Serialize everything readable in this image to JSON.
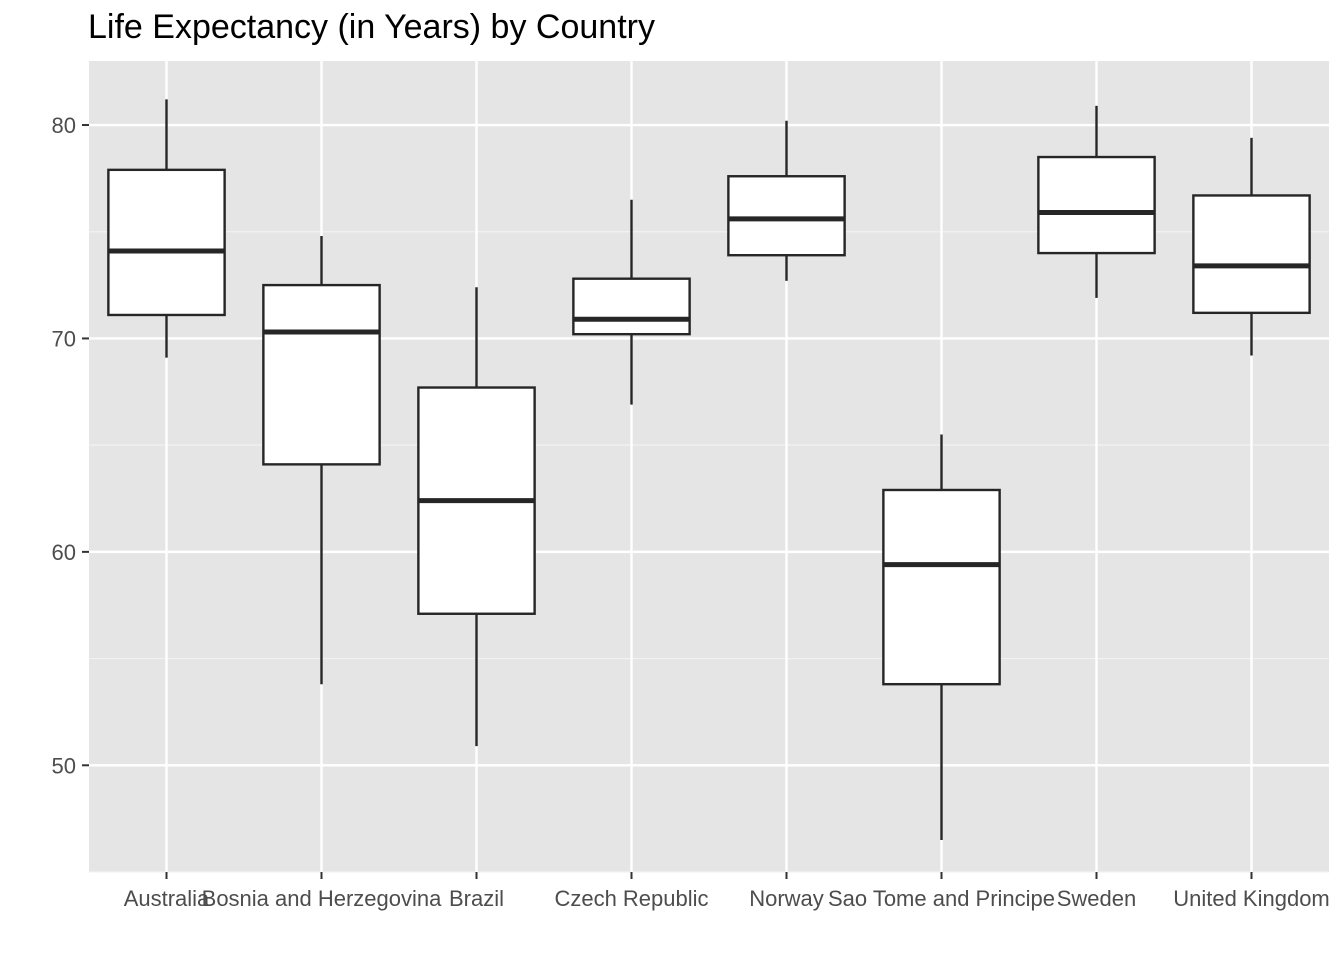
{
  "chart_data": {
    "type": "boxplot",
    "title": "Life Expectancy (in Years) by Country",
    "xlabel": "",
    "ylabel": "",
    "ylim": [
      45,
      83
    ],
    "y_ticks": [
      "50",
      "60",
      "70",
      "80"
    ],
    "grid": true,
    "legend": "none",
    "categories": [
      "Australia",
      "Bosnia and Herzegovina",
      "Brazil",
      "Czech Republic",
      "Norway",
      "Sao Tome and Principe",
      "Sweden",
      "United Kingdom"
    ],
    "boxes": [
      {
        "category": "Australia",
        "min": 69.1,
        "q1": 71.1,
        "median": 74.1,
        "q3": 77.9,
        "max": 81.2
      },
      {
        "category": "Bosnia and Herzegovina",
        "min": 53.8,
        "q1": 64.1,
        "median": 70.3,
        "q3": 72.5,
        "max": 74.8
      },
      {
        "category": "Brazil",
        "min": 50.9,
        "q1": 57.1,
        "median": 62.4,
        "q3": 67.7,
        "max": 72.4
      },
      {
        "category": "Czech Republic",
        "min": 66.9,
        "q1": 70.2,
        "median": 70.9,
        "q3": 72.8,
        "max": 76.5
      },
      {
        "category": "Norway",
        "min": 72.7,
        "q1": 73.9,
        "median": 75.6,
        "q3": 77.6,
        "max": 80.2
      },
      {
        "category": "Sao Tome and Principe",
        "min": 46.5,
        "q1": 53.8,
        "median": 59.4,
        "q3": 62.9,
        "max": 65.5
      },
      {
        "category": "Sweden",
        "min": 71.9,
        "q1": 74.0,
        "median": 75.9,
        "q3": 78.5,
        "max": 80.9
      },
      {
        "category": "United Kingdom",
        "min": 69.2,
        "q1": 71.2,
        "median": 73.4,
        "q3": 76.7,
        "max": 79.4
      }
    ],
    "colors": {
      "panel_background": "#e5e5e5",
      "grid_major": "#ffffff",
      "grid_minor": "#f2f2f2",
      "box_fill": "#ffffff",
      "box_stroke": "#262626",
      "tick_text": "#4d4d4d",
      "title_text": "#000000"
    }
  }
}
